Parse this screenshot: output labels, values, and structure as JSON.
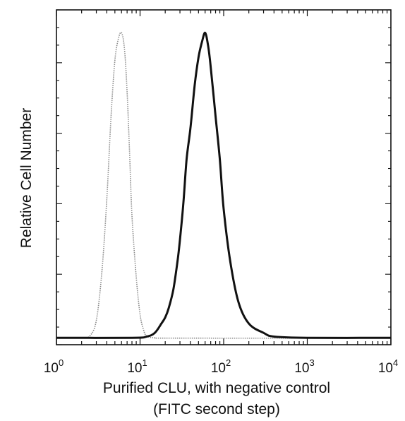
{
  "chart_data": {
    "type": "line",
    "title": "",
    "xlabel_line1": "Purified CLU, with negative control",
    "xlabel_line2": "(FITC second step)",
    "ylabel": "Relative Cell Number",
    "x_scale": "log",
    "xlim": [
      1,
      10000
    ],
    "ylim": [
      0,
      1
    ],
    "grid": false,
    "legend": "none",
    "x_ticks": [
      {
        "base": "10",
        "exp": "0"
      },
      {
        "base": "10",
        "exp": "1"
      },
      {
        "base": "10",
        "exp": "2"
      },
      {
        "base": "10",
        "exp": "3"
      },
      {
        "base": "10",
        "exp": "4"
      }
    ],
    "series": [
      {
        "style": "dotted-gray",
        "color": "#8a8a8a",
        "x": [
          1,
          2,
          2.5,
          3,
          3.5,
          4,
          4.5,
          5,
          5.5,
          6,
          6.5,
          7,
          7.5,
          8,
          9,
          10,
          11,
          12,
          15,
          30,
          10000
        ],
        "y": [
          0.003,
          0.004,
          0.01,
          0.06,
          0.22,
          0.45,
          0.72,
          0.9,
          0.97,
          0.99,
          0.94,
          0.8,
          0.6,
          0.4,
          0.2,
          0.08,
          0.03,
          0.01,
          0.004,
          0.003,
          0.003
        ]
      },
      {
        "style": "solid-black",
        "color": "#111111",
        "x": [
          1,
          8,
          12,
          15,
          18,
          20,
          22,
          25,
          28,
          30,
          33,
          36,
          40,
          45,
          50,
          55,
          60,
          65,
          70,
          80,
          90,
          100,
          120,
          150,
          200,
          300,
          400,
          1000,
          10000
        ],
        "y": [
          0.004,
          0.004,
          0.008,
          0.02,
          0.05,
          0.07,
          0.1,
          0.16,
          0.25,
          0.32,
          0.44,
          0.58,
          0.68,
          0.82,
          0.91,
          0.96,
          0.99,
          0.95,
          0.88,
          0.72,
          0.58,
          0.42,
          0.25,
          0.12,
          0.05,
          0.02,
          0.008,
          0.004,
          0.004
        ]
      }
    ]
  }
}
